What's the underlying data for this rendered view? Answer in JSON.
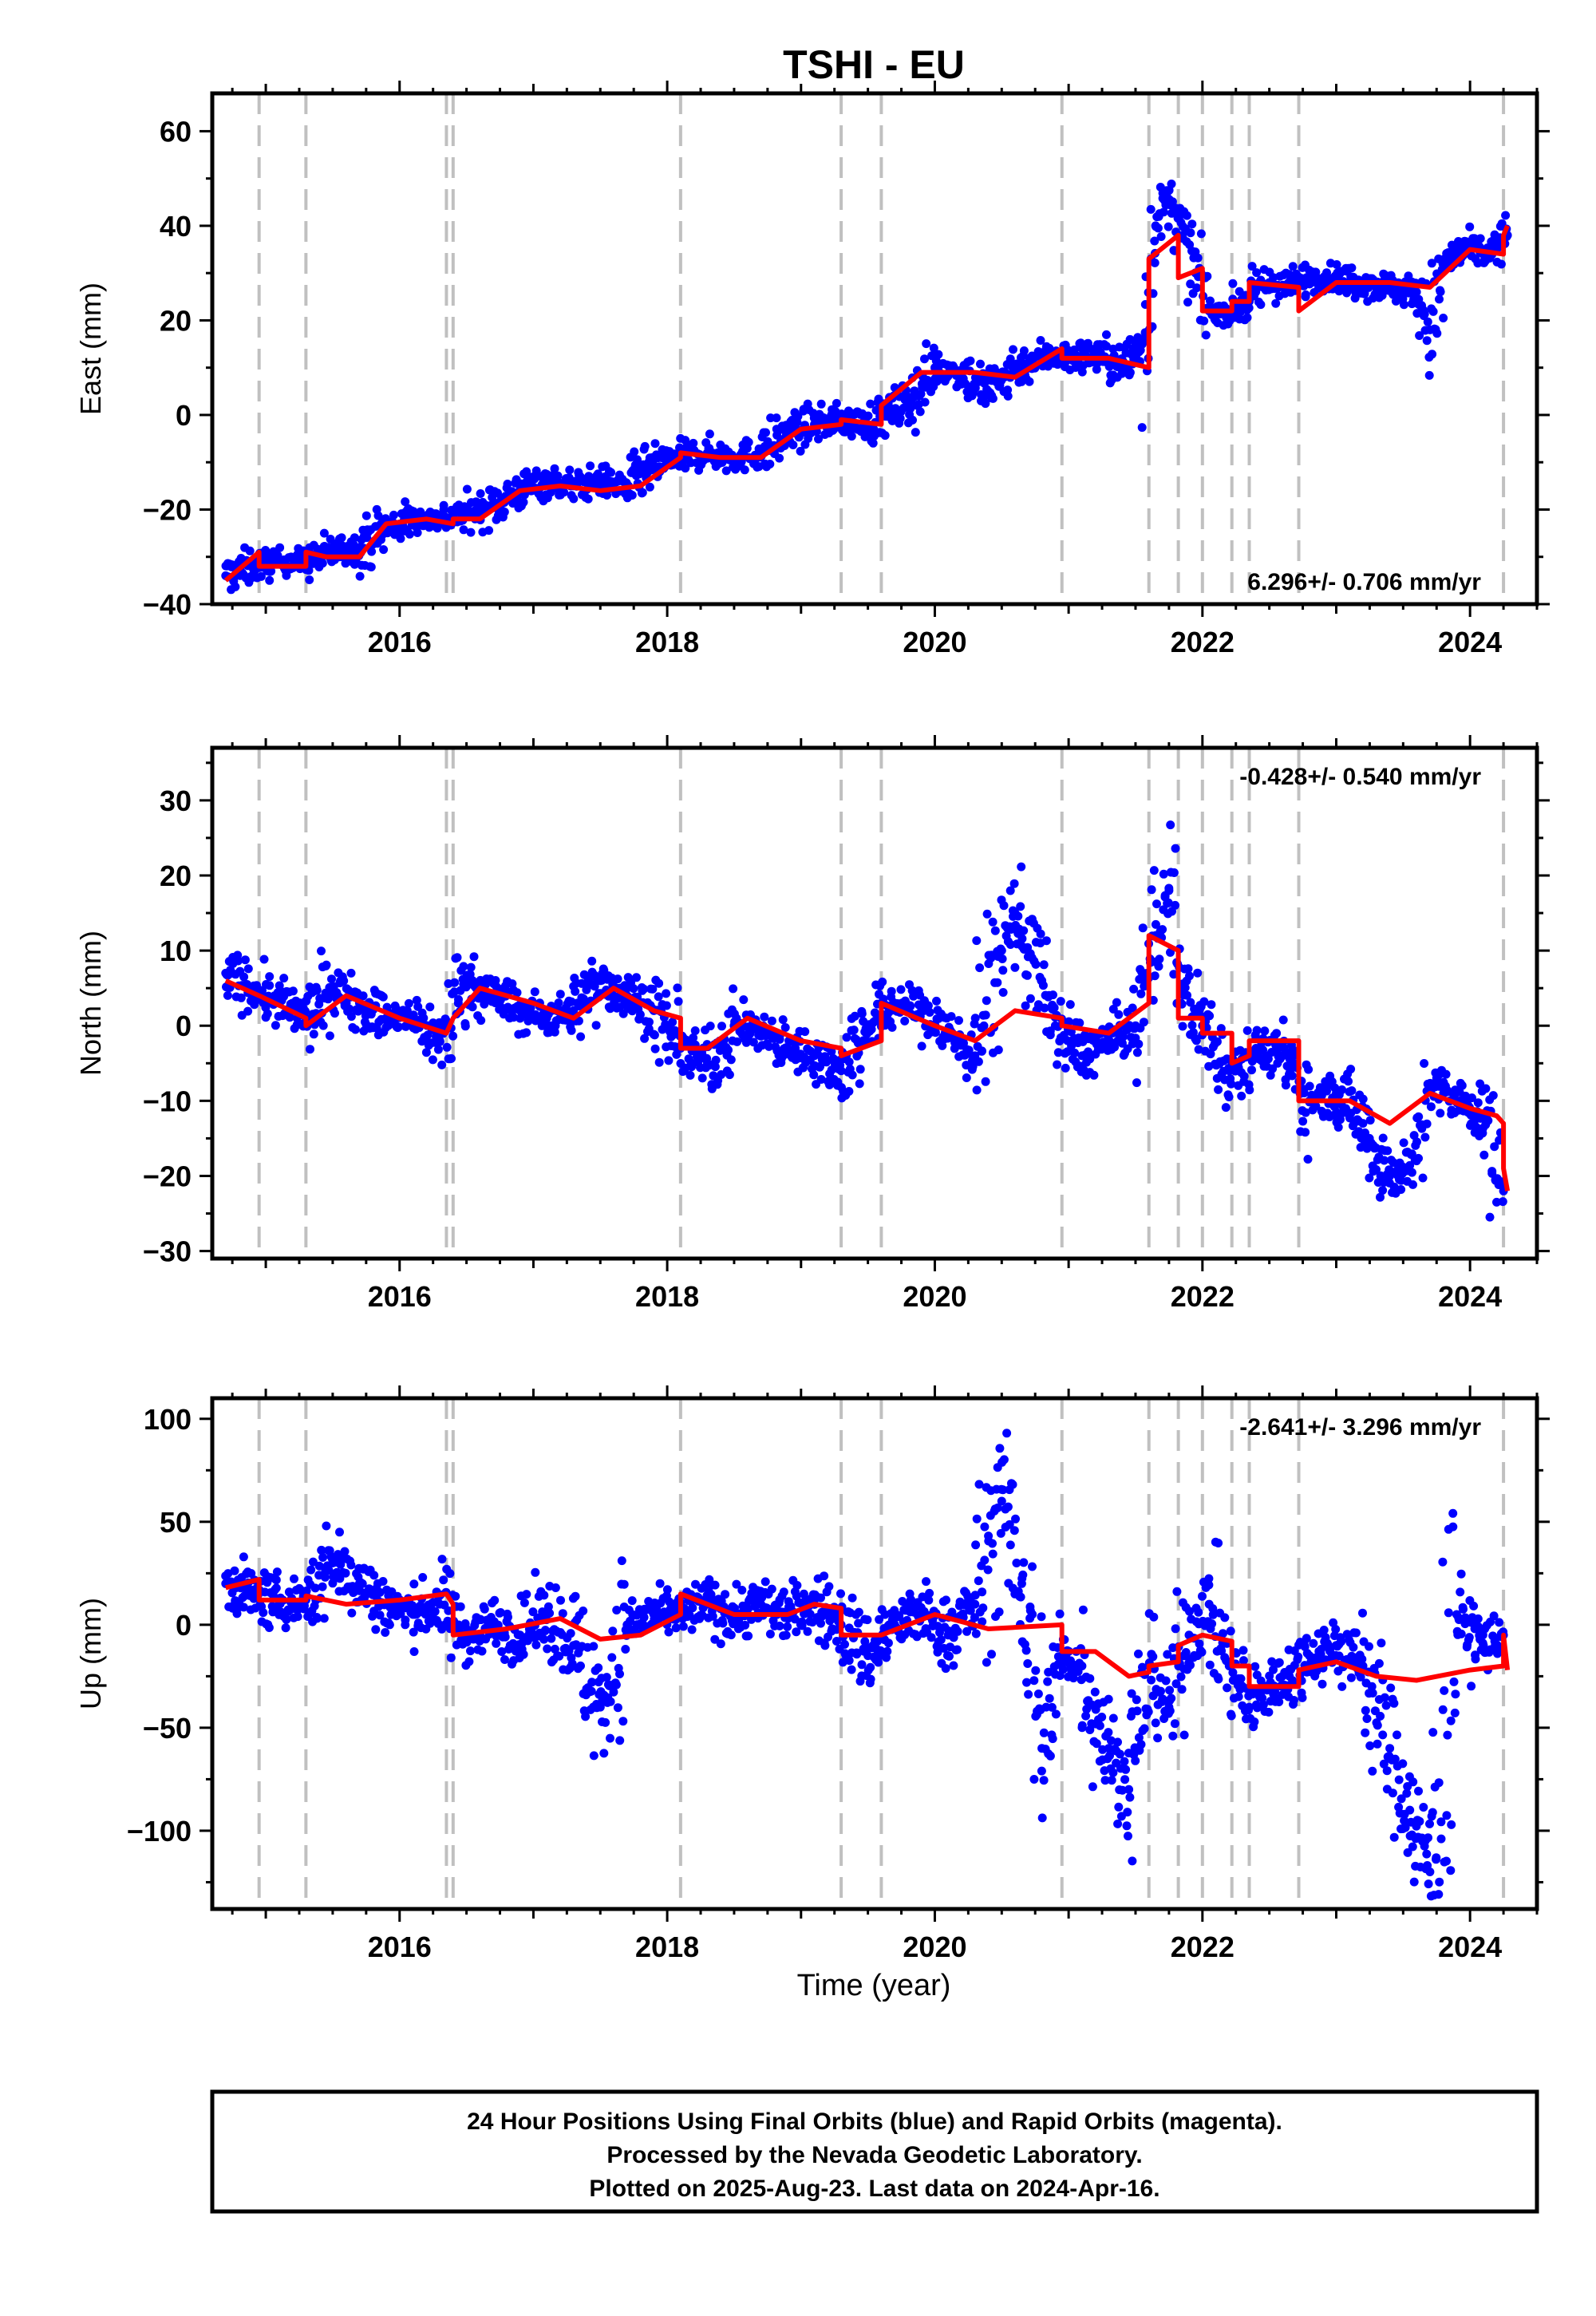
{
  "chart_data": {
    "type": "scatter",
    "title": "TSHI - EU",
    "xlabel": "Time (year)",
    "xlim": [
      2014.6,
      2024.5
    ],
    "x_ticks": [
      2016,
      2018,
      2020,
      2022,
      2024
    ],
    "x_tick_labels": [
      "2016",
      "2018",
      "2020",
      "2022",
      "2024"
    ],
    "grid": false,
    "legend": "none",
    "colors": {
      "points": "#0000ff",
      "model": "#ff0000",
      "events": "#c0c0c0"
    },
    "event_lines": [
      2014.95,
      2015.3,
      2016.35,
      2016.4,
      2018.1,
      2019.3,
      2019.6,
      2020.95,
      2021.6,
      2021.82,
      2022.0,
      2022.22,
      2022.35,
      2022.72,
      2024.25
    ],
    "panels": [
      {
        "ylabel": "East (mm)",
        "ylim": [
          -40,
          68
        ],
        "y_ticks": [
          -40,
          -20,
          0,
          20,
          40,
          60
        ],
        "y_tick_labels": [
          "−40",
          "−20",
          "0",
          "20",
          "40",
          "60"
        ],
        "rate_label": "6.296+/- 0.706 mm/yr",
        "rate_position": "bottom-right",
        "series": [
          {
            "name": "Final Orbits",
            "style": "points",
            "x": [
              2014.7,
              2014.9,
              2015.1,
              2015.3,
              2015.5,
              2015.7,
              2015.9,
              2016.1,
              2016.3,
              2016.5,
              2016.7,
              2016.9,
              2017.1,
              2017.3,
              2017.5,
              2017.7,
              2017.9,
              2018.1,
              2018.3,
              2018.5,
              2018.7,
              2018.9,
              2019.1,
              2019.3,
              2019.5,
              2019.7,
              2019.85,
              2020.0,
              2020.2,
              2020.4,
              2020.6,
              2020.8,
              2020.9,
              2021.0,
              2021.2,
              2021.4,
              2021.55,
              2021.65,
              2021.75,
              2021.85,
              2021.95,
              2022.05,
              2022.2,
              2022.35,
              2022.5,
              2022.65,
              2022.8,
              2023.0,
              2023.2,
              2023.4,
              2023.6,
              2023.7,
              2023.85,
              2024.0,
              2024.15,
              2024.28
            ],
            "y": [
              -34,
              -32,
              -31,
              -31,
              -29,
              -28,
              -24,
              -22,
              -22,
              -21,
              -19,
              -16,
              -14,
              -15,
              -14,
              -15,
              -11,
              -9,
              -8,
              -9,
              -8,
              -4,
              -2,
              -1,
              -2,
              1,
              4,
              10,
              9,
              5,
              10,
              12,
              13,
              12,
              13,
              10,
              15,
              40,
              45,
              38,
              30,
              22,
              22,
              24,
              28,
              27,
              29,
              29,
              28,
              27,
              26,
              18,
              33,
              35,
              34,
              38
            ]
          },
          {
            "name": "Model",
            "style": "line",
            "x": [
              2014.7,
              2014.95,
              2014.95,
              2015.3,
              2015.3,
              2015.45,
              2015.7,
              2015.9,
              2016.2,
              2016.4,
              2016.4,
              2016.6,
              2016.9,
              2017.2,
              2017.5,
              2017.8,
              2018.1,
              2018.1,
              2018.4,
              2018.7,
              2019.0,
              2019.3,
              2019.3,
              2019.6,
              2019.6,
              2019.9,
              2020.3,
              2020.6,
              2020.95,
              2020.95,
              2021.3,
              2021.6,
              2021.6,
              2021.82,
              2021.82,
              2022.0,
              2022.0,
              2022.22,
              2022.22,
              2022.35,
              2022.35,
              2022.72,
              2022.72,
              2023.0,
              2023.4,
              2023.7,
              2024.0,
              2024.25,
              2024.25,
              2024.28
            ],
            "y": [
              -35,
              -29,
              -32,
              -32,
              -29,
              -30,
              -30,
              -23,
              -22,
              -23,
              -22,
              -22,
              -16,
              -15,
              -16,
              -15,
              -9,
              -8,
              -9,
              -9,
              -3,
              -2,
              -1,
              -2,
              2,
              9,
              9,
              8,
              14,
              12,
              12,
              10,
              33,
              38,
              29,
              31,
              22,
              22,
              24,
              24,
              28,
              27,
              22,
              28,
              28,
              27,
              35,
              34,
              38,
              40
            ]
          }
        ]
      },
      {
        "ylabel": "North (mm)",
        "ylim": [
          -31,
          37
        ],
        "y_ticks": [
          -30,
          -20,
          -10,
          0,
          10,
          20,
          30
        ],
        "y_tick_labels": [
          "−30",
          "−20",
          "−10",
          "0",
          "10",
          "20",
          "30"
        ],
        "rate_label": "-0.428+/- 0.540 mm/yr",
        "rate_position": "top-right",
        "series": [
          {
            "name": "Final Orbits",
            "style": "points",
            "x": [
              2014.7,
              2014.9,
              2015.1,
              2015.3,
              2015.5,
              2015.7,
              2015.9,
              2016.1,
              2016.3,
              2016.5,
              2016.7,
              2016.9,
              2017.1,
              2017.3,
              2017.5,
              2017.7,
              2017.9,
              2018.1,
              2018.3,
              2018.5,
              2018.7,
              2018.9,
              2019.1,
              2019.3,
              2019.5,
              2019.7,
              2019.9,
              2020.1,
              2020.3,
              2020.5,
              2020.6,
              2020.8,
              2020.9,
              2021.1,
              2021.3,
              2021.5,
              2021.65,
              2021.75,
              2021.85,
              2022.0,
              2022.2,
              2022.4,
              2022.6,
              2022.8,
              2023.0,
              2023.2,
              2023.4,
              2023.6,
              2023.7,
              2023.9,
              2024.1,
              2024.25
            ],
            "y": [
              7,
              5,
              3,
              1,
              5,
              3,
              1,
              1,
              -2,
              6,
              4,
              2,
              1,
              2,
              6,
              4,
              2,
              -3,
              -5,
              0,
              -1,
              -3,
              -4,
              -6,
              0,
              3,
              2,
              -1,
              -4,
              10,
              15,
              6,
              0,
              -4,
              -2,
              0,
              12,
              18,
              5,
              0,
              -6,
              -3,
              -4,
              -10,
              -9,
              -13,
              -20,
              -18,
              -8,
              -10,
              -12,
              -22
            ]
          },
          {
            "name": "Model",
            "style": "line",
            "x": [
              2014.7,
              2014.95,
              2015.3,
              2015.3,
              2015.6,
              2016.0,
              2016.35,
              2016.4,
              2016.6,
              2017.0,
              2017.3,
              2017.6,
              2017.9,
              2018.1,
              2018.1,
              2018.3,
              2018.6,
              2019.0,
              2019.3,
              2019.3,
              2019.6,
              2019.6,
              2020.0,
              2020.3,
              2020.6,
              2020.95,
              2020.95,
              2021.3,
              2021.6,
              2021.6,
              2021.82,
              2021.82,
              2022.0,
              2022.0,
              2022.22,
              2022.22,
              2022.35,
              2022.35,
              2022.72,
              2022.72,
              2023.1,
              2023.4,
              2023.7,
              2024.0,
              2024.2,
              2024.25,
              2024.25,
              2024.28
            ],
            "y": [
              6,
              4,
              1,
              0,
              4,
              1,
              -1,
              1,
              5,
              3,
              1,
              5,
              2,
              1,
              -3,
              -3,
              1,
              -2,
              -3,
              -4,
              -2,
              3,
              0,
              -2,
              2,
              1,
              0,
              -1,
              3,
              12,
              10,
              1,
              1,
              -1,
              -1,
              -5,
              -4,
              -2,
              -2,
              -10,
              -10,
              -13,
              -9,
              -11,
              -12,
              -13,
              -19,
              -22
            ]
          }
        ]
      },
      {
        "ylabel": "Up (mm)",
        "ylim": [
          -138,
          110
        ],
        "y_ticks": [
          -100,
          -50,
          0,
          50,
          100
        ],
        "y_tick_labels": [
          "−100",
          "−50",
          "0",
          "50",
          "100"
        ],
        "rate_label": "-2.641+/- 3.296 mm/yr",
        "rate_position": "top-right",
        "series": [
          {
            "name": "Final Orbits",
            "style": "points",
            "x": [
              2014.7,
              2014.9,
              2015.1,
              2015.3,
              2015.5,
              2015.7,
              2015.9,
              2016.1,
              2016.3,
              2016.5,
              2016.7,
              2016.9,
              2017.1,
              2017.3,
              2017.5,
              2017.7,
              2017.9,
              2018.1,
              2018.3,
              2018.5,
              2018.7,
              2018.9,
              2019.1,
              2019.3,
              2019.5,
              2019.7,
              2019.9,
              2020.1,
              2020.3,
              2020.5,
              2020.65,
              2020.8,
              2020.95,
              2021.1,
              2021.3,
              2021.45,
              2021.6,
              2021.75,
              2021.9,
              2022.05,
              2022.2,
              2022.35,
              2022.5,
              2022.65,
              2022.8,
              2023.0,
              2023.2,
              2023.4,
              2023.55,
              2023.7,
              2023.9,
              2024.1,
              2024.25
            ],
            "y": [
              20,
              15,
              10,
              12,
              30,
              20,
              10,
              5,
              10,
              -5,
              0,
              -5,
              5,
              -10,
              -40,
              0,
              5,
              5,
              10,
              5,
              10,
              5,
              10,
              0,
              -15,
              0,
              5,
              -5,
              10,
              60,
              20,
              -60,
              -15,
              -20,
              -60,
              -80,
              -20,
              -40,
              -5,
              10,
              -20,
              -40,
              -30,
              -25,
              -15,
              -10,
              -20,
              -60,
              -90,
              -120,
              5,
              -10,
              -5
            ]
          },
          {
            "name": "Model",
            "style": "line",
            "x": [
              2014.7,
              2014.95,
              2014.95,
              2015.3,
              2015.3,
              2015.6,
              2016.0,
              2016.35,
              2016.4,
              2016.4,
              2016.8,
              2017.2,
              2017.5,
              2017.8,
              2018.1,
              2018.1,
              2018.5,
              2018.9,
              2019.1,
              2019.3,
              2019.3,
              2019.6,
              2019.6,
              2020.0,
              2020.4,
              2020.95,
              2020.95,
              2021.2,
              2021.45,
              2021.6,
              2021.6,
              2021.82,
              2021.82,
              2022.0,
              2022.0,
              2022.22,
              2022.22,
              2022.35,
              2022.35,
              2022.72,
              2022.72,
              2023.0,
              2023.3,
              2023.6,
              2024.0,
              2024.25,
              2024.25,
              2024.28
            ],
            "y": [
              18,
              22,
              12,
              12,
              14,
              10,
              12,
              15,
              10,
              -5,
              -2,
              3,
              -7,
              -5,
              5,
              15,
              5,
              5,
              10,
              8,
              -5,
              -5,
              -5,
              5,
              -2,
              0,
              -13,
              -13,
              -25,
              -23,
              -20,
              -18,
              -10,
              -5,
              -5,
              -8,
              -20,
              -20,
              -30,
              -30,
              -22,
              -18,
              -25,
              -27,
              -22,
              -20,
              -5,
              -22
            ]
          }
        ]
      }
    ],
    "caption_lines": [
      "24 Hour Positions Using Final Orbits (blue) and Rapid Orbits (magenta).",
      "Processed by the Nevada Geodetic Laboratory.",
      "Plotted on 2025-Aug-23. Last data on 2024-Apr-16."
    ]
  }
}
